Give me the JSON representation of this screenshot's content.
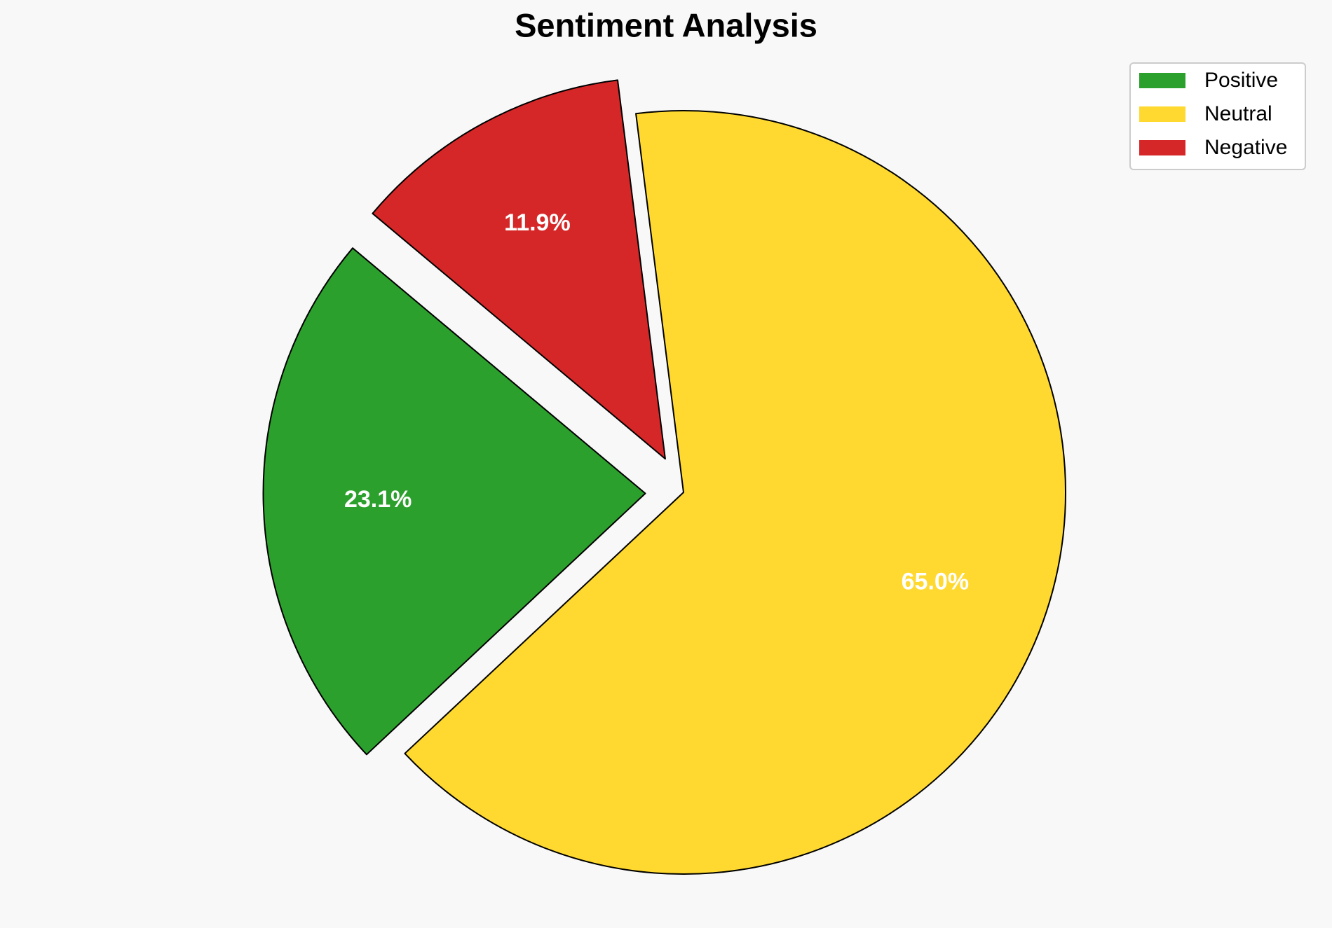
{
  "chart_data": {
    "type": "pie",
    "title": "Sentiment Analysis",
    "categories": [
      "Positive",
      "Neutral",
      "Negative"
    ],
    "values": [
      23.1,
      65.0,
      11.9
    ],
    "value_labels": [
      "23.1%",
      "65.0%",
      "11.9%"
    ],
    "colors": [
      "#2ca02c",
      "#ffd92f",
      "#d62728"
    ],
    "legend": "upper right"
  }
}
